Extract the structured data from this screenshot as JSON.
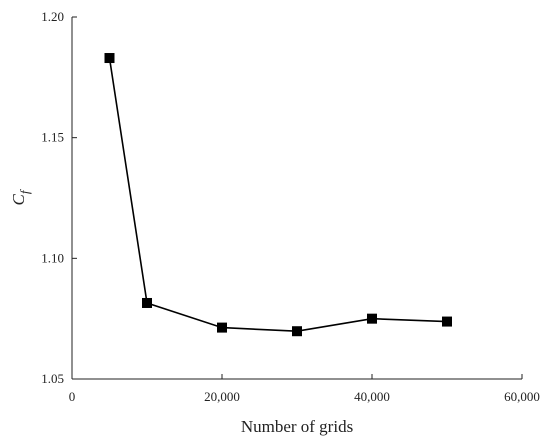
{
  "chart_data": {
    "type": "line",
    "title": "",
    "xlabel": "Number of grids",
    "ylabel_main": "C",
    "ylabel_sub": "f",
    "xlim": [
      0,
      60000
    ],
    "ylim": [
      1.05,
      1.2
    ],
    "xticks": [
      0,
      20000,
      40000,
      60000
    ],
    "xtick_labels": [
      "0",
      "20,000",
      "40,000",
      "60,000"
    ],
    "yticks": [
      1.05,
      1.1,
      1.15,
      1.2
    ],
    "ytick_labels": [
      "1.05",
      "1.10",
      "1.15",
      "1.20"
    ],
    "grid": false,
    "marker": "square",
    "series": [
      {
        "x": [
          5000,
          10000,
          20000,
          30000,
          40000,
          50000
        ],
        "y": [
          1.183,
          1.0815,
          1.0713,
          1.0698,
          1.075,
          1.0738
        ]
      }
    ]
  }
}
